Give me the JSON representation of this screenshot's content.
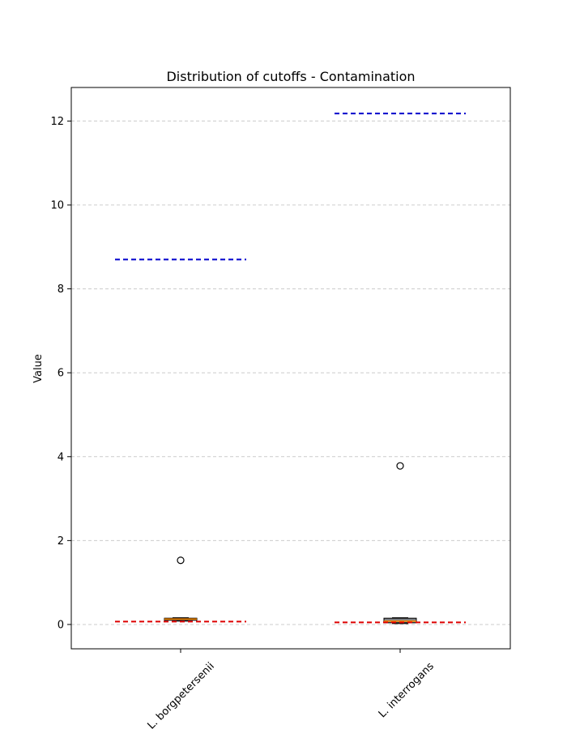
{
  "chart_data": {
    "type": "box",
    "title": "Distribution of cutoffs - Contamination",
    "xlabel": "",
    "ylabel": "Value",
    "ylim": [
      -0.58,
      12.8
    ],
    "yticks": [
      0,
      2,
      4,
      6,
      8,
      10,
      12
    ],
    "grid": "y-dashed",
    "categories": [
      "L. borgpetersenii",
      "L. interrogans"
    ],
    "boxes": [
      {
        "category": "L. borgpetersenii",
        "min": 0.08,
        "q1": 0.1,
        "median": 0.13,
        "q3": 0.15,
        "max": 0.16,
        "outliers": [
          1.53
        ],
        "box_color": "#d2a05a",
        "upper_cutoff": 8.7,
        "lower_cutoff": 0.07
      },
      {
        "category": "L. interrogans",
        "min": 0.02,
        "q1": 0.04,
        "median": 0.08,
        "q3": 0.15,
        "max": 0.16,
        "outliers": [
          3.78
        ],
        "box_color": "#808080",
        "upper_cutoff": 12.18,
        "lower_cutoff": 0.05
      }
    ],
    "colors": {
      "upper_cutoff_line": "#0000cc",
      "lower_cutoff_line": "#dd0000",
      "median_line": "#ff8c00",
      "grid": "#cccccc"
    }
  }
}
